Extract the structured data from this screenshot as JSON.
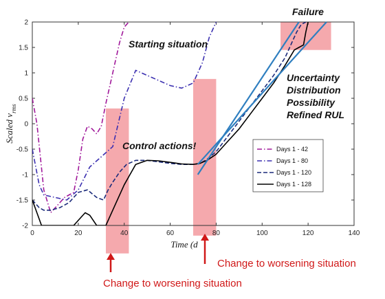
{
  "chart_data": {
    "type": "line",
    "xlabel": "Time (d",
    "ylabel": "Scaled v_rms",
    "xlim": [
      0,
      140
    ],
    "ylim": [
      -2,
      2
    ],
    "x_ticks": [
      "0",
      "20",
      "40",
      "60",
      "80",
      "100",
      "120",
      "140"
    ],
    "y_ticks": [
      "-2",
      "-1.5",
      "-1",
      "-0.5",
      "0",
      "0.5",
      "1",
      "1.5",
      "2"
    ],
    "grid": false,
    "legend_position": "lower-right",
    "series": [
      {
        "name": "Days 1 - 42",
        "color": "#a0189a",
        "style": "dash-dot",
        "x": [
          0,
          2,
          5,
          8,
          11,
          14,
          18,
          20,
          22,
          24,
          26,
          28,
          30,
          32,
          34,
          36,
          38,
          40,
          42
        ],
        "y": [
          0.5,
          0.0,
          -1.3,
          -1.75,
          -1.6,
          -1.45,
          -1.35,
          -0.9,
          -0.3,
          -0.05,
          -0.1,
          -0.2,
          -0.05,
          0.4,
          0.8,
          1.2,
          1.6,
          1.9,
          2.0
        ]
      },
      {
        "name": "Days 1 - 80",
        "color": "#3a2fb0",
        "style": "dash-dot",
        "x": [
          0,
          3,
          5,
          10,
          15,
          20,
          25,
          30,
          35,
          40,
          45,
          50,
          55,
          60,
          65,
          70,
          74,
          77,
          80
        ],
        "y": [
          -0.5,
          -1.2,
          -1.4,
          -1.45,
          -1.5,
          -1.3,
          -0.85,
          -0.65,
          -0.45,
          0.5,
          1.05,
          0.95,
          0.85,
          0.75,
          0.7,
          0.8,
          1.2,
          1.7,
          2.0
        ]
      },
      {
        "name": "Days 1 - 120",
        "color": "#1a2a7a",
        "style": "dashed",
        "x": [
          0,
          3,
          5,
          8,
          12,
          16,
          20,
          24,
          28,
          31,
          33,
          35,
          38,
          41,
          45,
          50,
          55,
          60,
          65,
          70,
          73,
          76,
          80,
          85,
          90,
          95,
          100,
          105,
          110,
          113,
          115,
          117,
          119,
          120
        ],
        "y": [
          -1.5,
          -1.65,
          -1.7,
          -1.7,
          -1.65,
          -1.55,
          -1.35,
          -1.3,
          -1.45,
          -1.5,
          -1.3,
          -1.15,
          -0.95,
          -0.8,
          -0.72,
          -0.72,
          -0.75,
          -0.78,
          -0.8,
          -0.8,
          -0.78,
          -0.7,
          -0.55,
          -0.25,
          0.05,
          0.35,
          0.65,
          0.95,
          1.3,
          1.6,
          1.8,
          1.95,
          2.0,
          2.0
        ]
      },
      {
        "name": "Days 1 - 128",
        "color": "#000000",
        "style": "solid",
        "x": [
          0,
          2,
          4,
          6,
          10,
          14,
          18,
          21,
          23,
          25,
          28,
          32,
          36,
          40,
          45,
          50,
          55,
          60,
          65,
          70,
          73,
          76,
          80,
          85,
          90,
          95,
          100,
          105,
          110,
          112,
          114,
          116,
          118,
          119,
          120
        ],
        "y": [
          -1.5,
          -1.75,
          -2.0,
          -2.0,
          -2.0,
          -2.0,
          -2.0,
          -1.85,
          -1.75,
          -1.8,
          -2.0,
          -2.0,
          -1.6,
          -1.2,
          -0.8,
          -0.72,
          -0.73,
          -0.76,
          -0.79,
          -0.8,
          -0.78,
          -0.72,
          -0.6,
          -0.35,
          -0.1,
          0.2,
          0.5,
          0.8,
          1.15,
          1.3,
          1.45,
          1.5,
          1.55,
          1.8,
          2.0
        ]
      }
    ],
    "trend_lines": [
      {
        "color": "#2f7fc0",
        "x": [
          72,
          116
        ],
        "y": [
          -1.0,
          2.0
        ]
      },
      {
        "color": "#2f7fc0",
        "x": [
          72,
          128
        ],
        "y": [
          -0.8,
          2.0
        ]
      }
    ],
    "highlight_regions": [
      {
        "x0": 32,
        "x1": 42,
        "y0": -2.55,
        "y1": 0.3
      },
      {
        "x0": 70,
        "x1": 80,
        "y0": -2.2,
        "y1": 0.88
      },
      {
        "x0": 108,
        "x1": 130,
        "y0": 1.45,
        "y1": 2.0
      }
    ],
    "annotations": {
      "failure": "Failure",
      "starting": "Starting situation",
      "control": "Control actions!",
      "uncertainty": [
        "Uncertainty",
        "Distribution",
        "Possibility",
        "Refined RUL"
      ],
      "change1": "Change to worsening situation",
      "change2": "Change to worsening situation"
    }
  }
}
